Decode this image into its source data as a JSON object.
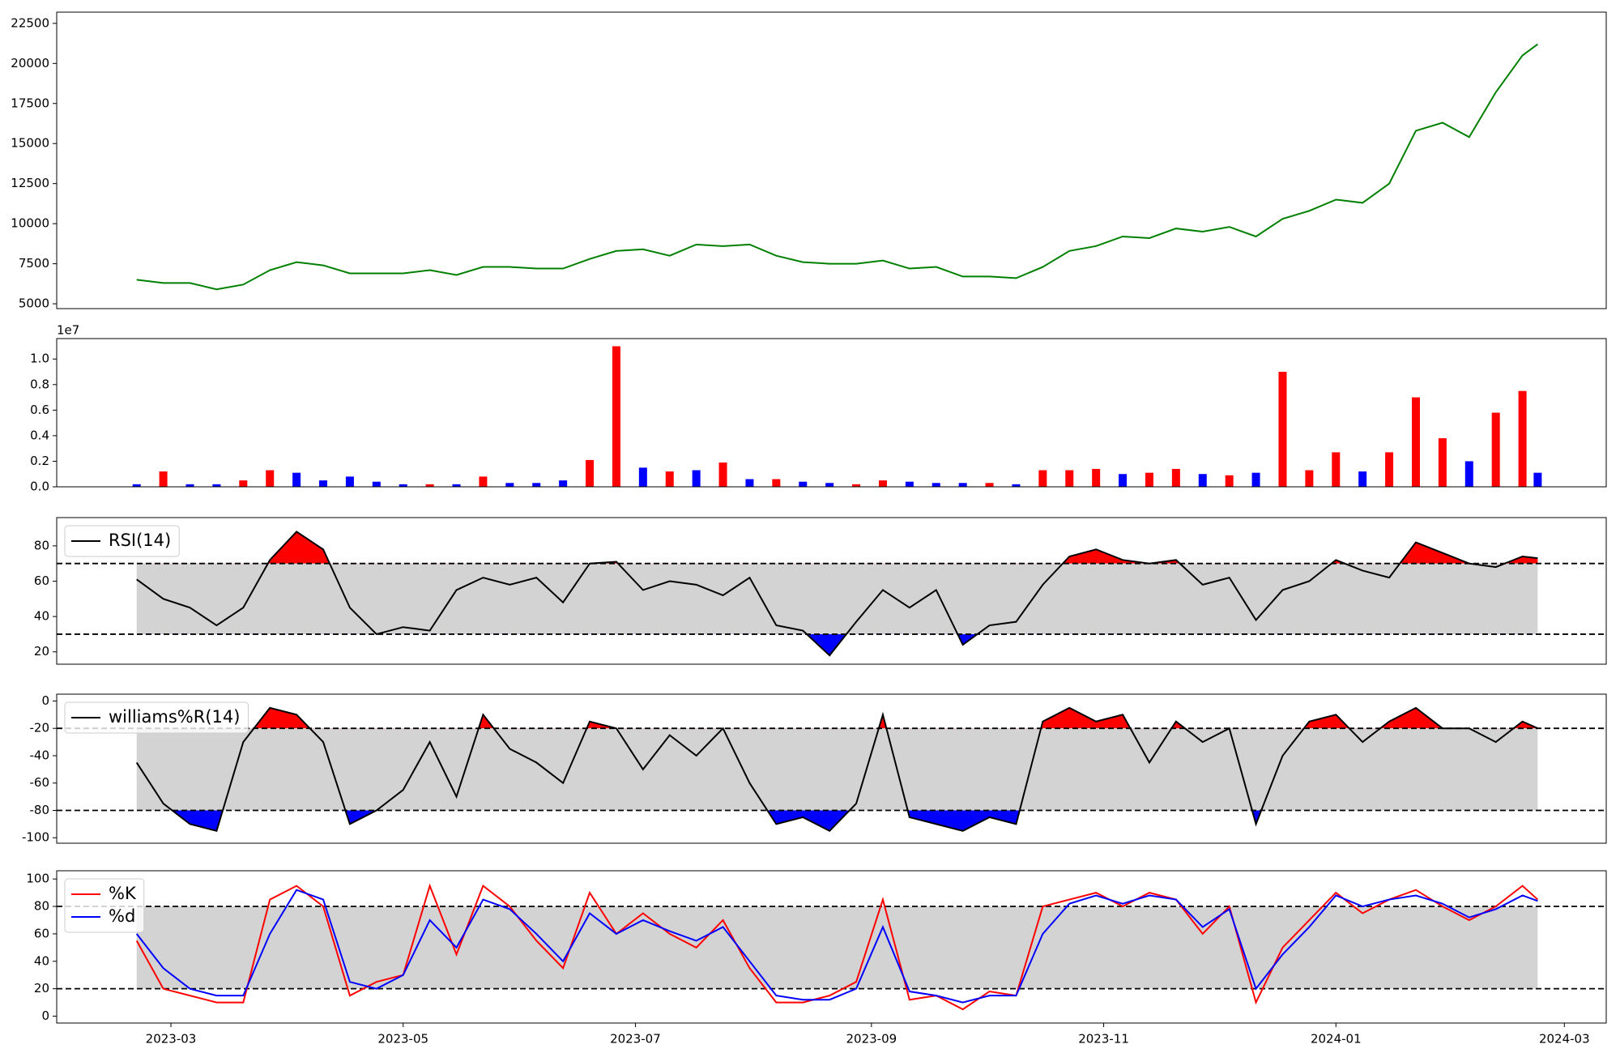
{
  "chart_data": [
    {
      "type": "line",
      "x": [
        "2023-02-20",
        "2023-02-27",
        "2023-03-06",
        "2023-03-13",
        "2023-03-20",
        "2023-03-27",
        "2023-04-03",
        "2023-04-10",
        "2023-04-17",
        "2023-04-24",
        "2023-05-01",
        "2023-05-08",
        "2023-05-15",
        "2023-05-22",
        "2023-05-29",
        "2023-06-05",
        "2023-06-12",
        "2023-06-19",
        "2023-06-26",
        "2023-07-03",
        "2023-07-10",
        "2023-07-17",
        "2023-07-24",
        "2023-07-31",
        "2023-08-07",
        "2023-08-14",
        "2023-08-21",
        "2023-08-28",
        "2023-09-04",
        "2023-09-11",
        "2023-09-18",
        "2023-09-25",
        "2023-10-02",
        "2023-10-09",
        "2023-10-16",
        "2023-10-23",
        "2023-10-30",
        "2023-11-06",
        "2023-11-13",
        "2023-11-20",
        "2023-11-27",
        "2023-12-04",
        "2023-12-11",
        "2023-12-18",
        "2023-12-25",
        "2024-01-01",
        "2024-01-08",
        "2024-01-15",
        "2024-01-22",
        "2024-01-29",
        "2024-02-05",
        "2024-02-12",
        "2024-02-19",
        "2024-02-23"
      ],
      "values": [
        6500,
        6300,
        6300,
        5900,
        6200,
        7100,
        7600,
        7400,
        6900,
        6900,
        6900,
        7100,
        6800,
        7300,
        7300,
        7200,
        7200,
        7800,
        8300,
        8400,
        8000,
        8700,
        8600,
        8700,
        8000,
        7600,
        7500,
        7500,
        7700,
        7200,
        7300,
        6700,
        6700,
        6600,
        7300,
        8300,
        8600,
        9200,
        9100,
        9700,
        9500,
        9800,
        9200,
        10300,
        10800,
        11500,
        11300,
        12500,
        15800,
        16300,
        15400,
        18200,
        20500,
        21200
      ],
      "color": "green",
      "xlim": [
        "2023-01-30",
        "2024-03-12"
      ],
      "ylim": [
        4700,
        23200
      ],
      "yticks": [
        5000,
        7500,
        10000,
        12500,
        15000,
        17500,
        20000,
        22500
      ]
    },
    {
      "type": "bar",
      "x": [
        "2023-02-20",
        "2023-02-27",
        "2023-03-06",
        "2023-03-13",
        "2023-03-20",
        "2023-03-27",
        "2023-04-03",
        "2023-04-10",
        "2023-04-17",
        "2023-04-24",
        "2023-05-01",
        "2023-05-08",
        "2023-05-15",
        "2023-05-22",
        "2023-05-29",
        "2023-06-05",
        "2023-06-12",
        "2023-06-19",
        "2023-06-26",
        "2023-07-03",
        "2023-07-10",
        "2023-07-17",
        "2023-07-24",
        "2023-07-31",
        "2023-08-07",
        "2023-08-14",
        "2023-08-21",
        "2023-08-28",
        "2023-09-04",
        "2023-09-11",
        "2023-09-18",
        "2023-09-25",
        "2023-10-02",
        "2023-10-09",
        "2023-10-16",
        "2023-10-23",
        "2023-10-30",
        "2023-11-06",
        "2023-11-13",
        "2023-11-20",
        "2023-11-27",
        "2023-12-04",
        "2023-12-11",
        "2023-12-18",
        "2023-12-25",
        "2024-01-01",
        "2024-01-08",
        "2024-01-15",
        "2024-01-22",
        "2024-01-29",
        "2024-02-05",
        "2024-02-12",
        "2024-02-19",
        "2024-02-23"
      ],
      "values": [
        0.02,
        0.12,
        0.02,
        0.02,
        0.05,
        0.13,
        0.11,
        0.05,
        0.08,
        0.04,
        0.02,
        0.02,
        0.02,
        0.08,
        0.03,
        0.03,
        0.05,
        0.21,
        1.1,
        0.15,
        0.12,
        0.13,
        0.19,
        0.06,
        0.06,
        0.04,
        0.03,
        0.02,
        0.05,
        0.04,
        0.03,
        0.03,
        0.03,
        0.02,
        0.13,
        0.13,
        0.14,
        0.1,
        0.11,
        0.14,
        0.1,
        0.09,
        0.11,
        0.9,
        0.13,
        0.27,
        0.12,
        0.27,
        0.7,
        0.38,
        0.2,
        0.58,
        0.75,
        0.11
      ],
      "colors": [
        "blue",
        "red",
        "blue",
        "blue",
        "red",
        "red",
        "blue",
        "blue",
        "blue",
        "blue",
        "blue",
        "red",
        "blue",
        "red",
        "blue",
        "blue",
        "blue",
        "red",
        "red",
        "blue",
        "red",
        "blue",
        "red",
        "blue",
        "red",
        "blue",
        "blue",
        "red",
        "red",
        "blue",
        "blue",
        "blue",
        "red",
        "blue",
        "red",
        "red",
        "red",
        "blue",
        "red",
        "red",
        "blue",
        "red",
        "blue",
        "red",
        "red",
        "red",
        "blue",
        "red",
        "red",
        "red",
        "blue",
        "red",
        "red",
        "blue"
      ],
      "offset_label": "1e7",
      "xlim": [
        "2023-01-30",
        "2024-03-12"
      ],
      "ylim": [
        0,
        1.16
      ],
      "yticks": [
        {
          "value": 0,
          "label": "0.0"
        },
        0.2,
        0.4,
        0.6,
        0.8,
        {
          "value": 1,
          "label": "1.0"
        }
      ]
    },
    {
      "type": "line",
      "x": [
        "2023-02-20",
        "2023-02-27",
        "2023-03-06",
        "2023-03-13",
        "2023-03-20",
        "2023-03-27",
        "2023-04-03",
        "2023-04-10",
        "2023-04-17",
        "2023-04-24",
        "2023-05-01",
        "2023-05-08",
        "2023-05-15",
        "2023-05-22",
        "2023-05-29",
        "2023-06-05",
        "2023-06-12",
        "2023-06-19",
        "2023-06-26",
        "2023-07-03",
        "2023-07-10",
        "2023-07-17",
        "2023-07-24",
        "2023-07-31",
        "2023-08-07",
        "2023-08-14",
        "2023-08-21",
        "2023-08-28",
        "2023-09-04",
        "2023-09-11",
        "2023-09-18",
        "2023-09-25",
        "2023-10-02",
        "2023-10-09",
        "2023-10-16",
        "2023-10-23",
        "2023-10-30",
        "2023-11-06",
        "2023-11-13",
        "2023-11-20",
        "2023-11-27",
        "2023-12-04",
        "2023-12-11",
        "2023-12-18",
        "2023-12-25",
        "2024-01-01",
        "2024-01-08",
        "2024-01-15",
        "2024-01-22",
        "2024-01-29",
        "2024-02-05",
        "2024-02-12",
        "2024-02-19",
        "2024-02-23"
      ],
      "series": [
        {
          "name": "RSI(14)",
          "color": "black",
          "values": [
            61,
            50,
            45,
            35,
            45,
            72,
            88,
            78,
            45,
            30,
            34,
            32,
            55,
            62,
            58,
            62,
            48,
            70,
            71,
            55,
            60,
            58,
            52,
            62,
            35,
            32,
            18,
            37,
            55,
            45,
            55,
            24,
            35,
            37,
            58,
            74,
            78,
            72,
            70,
            72,
            58,
            62,
            38,
            55,
            60,
            72,
            66,
            62,
            82,
            76,
            70,
            68,
            74,
            73
          ]
        }
      ],
      "bands": {
        "upper": 70,
        "lower": 30,
        "fill": "lightgray",
        "upper_color": "red",
        "lower_color": "blue"
      },
      "legend": "upper left",
      "xlim": [
        "2023-01-30",
        "2024-03-12"
      ],
      "ylim": [
        13,
        96
      ],
      "yticks": [
        20,
        40,
        60,
        80
      ]
    },
    {
      "type": "line",
      "x": [
        "2023-02-20",
        "2023-02-27",
        "2023-03-06",
        "2023-03-13",
        "2023-03-20",
        "2023-03-27",
        "2023-04-03",
        "2023-04-10",
        "2023-04-17",
        "2023-04-24",
        "2023-05-01",
        "2023-05-08",
        "2023-05-15",
        "2023-05-22",
        "2023-05-29",
        "2023-06-05",
        "2023-06-12",
        "2023-06-19",
        "2023-06-26",
        "2023-07-03",
        "2023-07-10",
        "2023-07-17",
        "2023-07-24",
        "2023-07-31",
        "2023-08-07",
        "2023-08-14",
        "2023-08-21",
        "2023-08-28",
        "2023-09-04",
        "2023-09-11",
        "2023-09-18",
        "2023-09-25",
        "2023-10-02",
        "2023-10-09",
        "2023-10-16",
        "2023-10-23",
        "2023-10-30",
        "2023-11-06",
        "2023-11-13",
        "2023-11-20",
        "2023-11-27",
        "2023-12-04",
        "2023-12-11",
        "2023-12-18",
        "2023-12-25",
        "2024-01-01",
        "2024-01-08",
        "2024-01-15",
        "2024-01-22",
        "2024-01-29",
        "2024-02-05",
        "2024-02-12",
        "2024-02-19",
        "2024-02-23"
      ],
      "series": [
        {
          "name": "williams%R(14)",
          "color": "black",
          "values": [
            -45,
            -75,
            -90,
            -95,
            -30,
            -5,
            -10,
            -30,
            -90,
            -80,
            -65,
            -30,
            -70,
            -10,
            -35,
            -45,
            -60,
            -15,
            -20,
            -50,
            -25,
            -40,
            -20,
            -60,
            -90,
            -85,
            -95,
            -75,
            -10,
            -85,
            -90,
            -95,
            -85,
            -90,
            -15,
            -5,
            -15,
            -10,
            -45,
            -15,
            -30,
            -20,
            -90,
            -40,
            -15,
            -10,
            -30,
            -15,
            -5,
            -20,
            -20,
            -30,
            -15,
            -20
          ]
        }
      ],
      "bands": {
        "upper": -20,
        "lower": -80,
        "fill": "lightgray",
        "upper_color": "red",
        "lower_color": "blue"
      },
      "legend": "upper left",
      "xlim": [
        "2023-01-30",
        "2024-03-12"
      ],
      "ylim": [
        -104,
        5
      ],
      "yticks": [
        -100,
        -80,
        -60,
        -40,
        -20,
        0
      ]
    },
    {
      "type": "line",
      "x": [
        "2023-02-20",
        "2023-02-27",
        "2023-03-06",
        "2023-03-13",
        "2023-03-20",
        "2023-03-27",
        "2023-04-03",
        "2023-04-10",
        "2023-04-17",
        "2023-04-24",
        "2023-05-01",
        "2023-05-08",
        "2023-05-15",
        "2023-05-22",
        "2023-05-29",
        "2023-06-05",
        "2023-06-12",
        "2023-06-19",
        "2023-06-26",
        "2023-07-03",
        "2023-07-10",
        "2023-07-17",
        "2023-07-24",
        "2023-07-31",
        "2023-08-07",
        "2023-08-14",
        "2023-08-21",
        "2023-08-28",
        "2023-09-04",
        "2023-09-11",
        "2023-09-18",
        "2023-09-25",
        "2023-10-02",
        "2023-10-09",
        "2023-10-16",
        "2023-10-23",
        "2023-10-30",
        "2023-11-06",
        "2023-11-13",
        "2023-11-20",
        "2023-11-27",
        "2023-12-04",
        "2023-12-11",
        "2023-12-18",
        "2023-12-25",
        "2024-01-01",
        "2024-01-08",
        "2024-01-15",
        "2024-01-22",
        "2024-01-29",
        "2024-02-05",
        "2024-02-12",
        "2024-02-19",
        "2024-02-23"
      ],
      "series": [
        {
          "name": "%K",
          "color": "red",
          "values": [
            55,
            20,
            15,
            10,
            10,
            85,
            95,
            80,
            15,
            25,
            30,
            95,
            45,
            95,
            80,
            55,
            35,
            90,
            60,
            75,
            60,
            50,
            70,
            35,
            10,
            10,
            15,
            25,
            85,
            12,
            15,
            5,
            18,
            15,
            80,
            85,
            90,
            80,
            90,
            85,
            60,
            80,
            10,
            50,
            70,
            90,
            75,
            85,
            92,
            80,
            70,
            80,
            95,
            85
          ]
        },
        {
          "name": "%d",
          "color": "blue",
          "values": [
            60,
            35,
            20,
            15,
            15,
            60,
            92,
            85,
            25,
            20,
            30,
            70,
            50,
            85,
            78,
            60,
            40,
            75,
            60,
            70,
            62,
            55,
            65,
            40,
            15,
            12,
            12,
            20,
            65,
            18,
            15,
            10,
            15,
            15,
            60,
            82,
            88,
            82,
            88,
            85,
            65,
            78,
            20,
            45,
            65,
            88,
            80,
            85,
            88,
            82,
            72,
            78,
            88,
            84
          ]
        }
      ],
      "bands": {
        "upper": 80,
        "lower": 20,
        "fill": "lightgray"
      },
      "legend": "upper left",
      "xlim": [
        "2023-01-30",
        "2024-03-12"
      ],
      "ylim": [
        -5,
        106
      ],
      "yticks": [
        0,
        20,
        40,
        60,
        80,
        100
      ],
      "xticks": [
        {
          "value": "2023-03-01",
          "label": "2023-03"
        },
        {
          "value": "2023-05-01",
          "label": "2023-05"
        },
        {
          "value": "2023-07-01",
          "label": "2023-07"
        },
        {
          "value": "2023-09-01",
          "label": "2023-09"
        },
        {
          "value": "2023-11-01",
          "label": "2023-11"
        },
        {
          "value": "2024-01-01",
          "label": "2024-01"
        },
        {
          "value": "2024-03-01",
          "label": "2024-03"
        }
      ]
    }
  ]
}
